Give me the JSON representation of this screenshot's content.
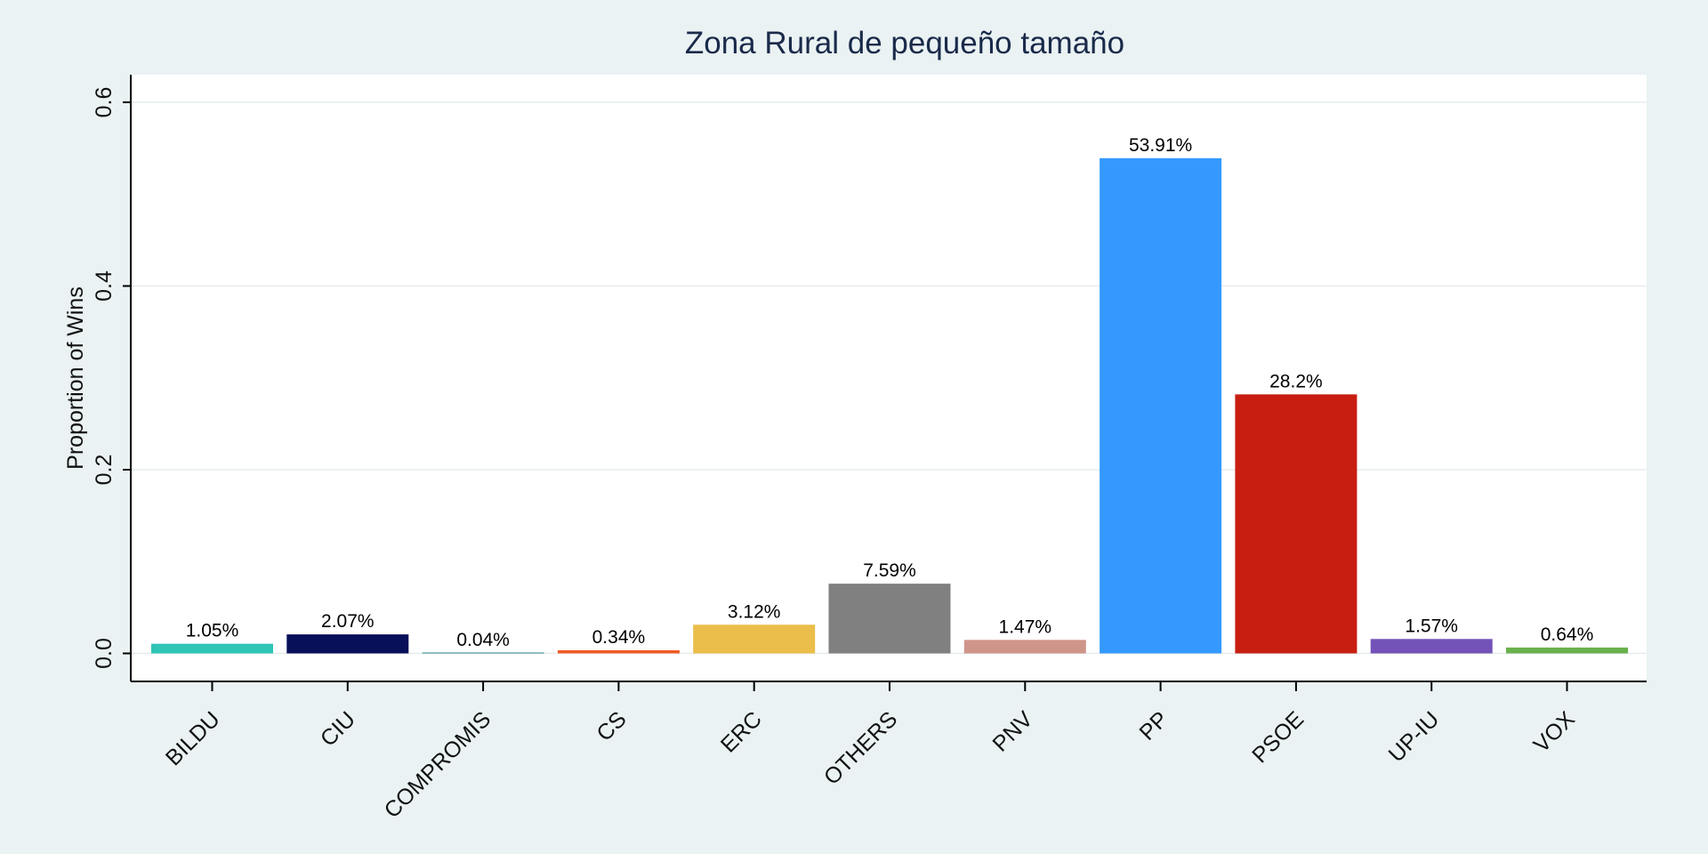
{
  "chart_data": {
    "type": "bar",
    "title": "Zona Rural de pequeño tamaño",
    "xlabel": "",
    "ylabel": "Proportion of Wins",
    "ylim": [
      -0.0305,
      0.63
    ],
    "yticks": [
      0.0,
      0.2,
      0.4,
      0.6
    ],
    "ytick_labels": [
      "0.0",
      "0.2",
      "0.4",
      "0.6"
    ],
    "grid": true,
    "legend": "none",
    "categories": [
      "BILDU",
      "CIU",
      "COMPROMIS",
      "CS",
      "ERC",
      "OTHERS",
      "PNV",
      "PP",
      "PSOE",
      "UP-IU",
      "VOX"
    ],
    "values": [
      0.0105,
      0.0207,
      0.0004,
      0.0034,
      0.0312,
      0.0759,
      0.0147,
      0.5391,
      0.282,
      0.0157,
      0.0064
    ],
    "value_labels": [
      "1.05%",
      "2.07%",
      "0.04%",
      "0.34%",
      "3.12%",
      "7.59%",
      "1.47%",
      "53.91%",
      "28.2%",
      "1.57%",
      "0.64%"
    ],
    "colors": [
      "#2ec4b6",
      "#08105a",
      "#2a8a8a",
      "#f15a24",
      "#ebbd4a",
      "#808080",
      "#d0958a",
      "#3399ff",
      "#c81e12",
      "#7453b8",
      "#6ab04c"
    ]
  }
}
